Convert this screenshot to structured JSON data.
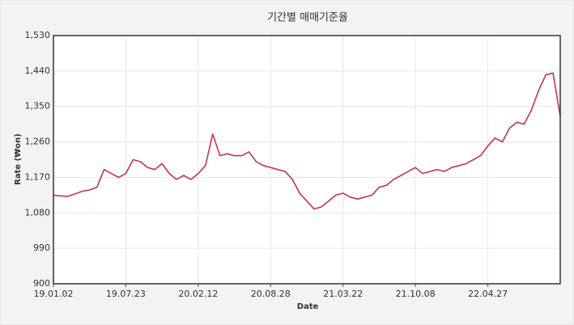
{
  "chart_data": {
    "type": "line",
    "title": "기간별 매매기준율",
    "x_label": "Date",
    "y_label": "Rate (₩on)",
    "x": [
      "19.01.02",
      "19.01.22",
      "19.02.13",
      "19.03.06",
      "19.03.26",
      "19.04.15",
      "19.05.07",
      "19.05.27",
      "19.06.17",
      "19.07.05",
      "19.07.23",
      "19.08.12",
      "19.08.30",
      "19.09.23",
      "19.10.14",
      "19.11.01",
      "19.11.21",
      "19.12.11",
      "20.01.02",
      "20.01.22",
      "20.02.12",
      "20.03.04",
      "20.03.19",
      "20.04.08",
      "20.04.28",
      "20.05.19",
      "20.06.08",
      "20.06.26",
      "20.07.16",
      "20.08.05",
      "20.08.28",
      "20.09.17",
      "20.10.08",
      "20.10.28",
      "20.11.17",
      "20.12.07",
      "20.12.28",
      "21.01.18",
      "21.02.05",
      "21.03.02",
      "21.03.22",
      "21.04.12",
      "21.04.30",
      "21.05.21",
      "21.06.10",
      "21.06.30",
      "21.07.20",
      "21.08.09",
      "21.08.27",
      "21.09.16",
      "21.10.08",
      "21.10.28",
      "21.11.17",
      "21.12.07",
      "21.12.27",
      "22.01.17",
      "22.02.08",
      "22.02.28",
      "22.03.21",
      "22.04.08",
      "22.04.27",
      "22.05.17",
      "22.06.07",
      "22.06.27",
      "22.07.15",
      "22.08.04",
      "22.08.25",
      "22.09.16",
      "22.10.07",
      "22.10.27",
      "22.11.11"
    ],
    "series": [
      {
        "name": "Rate",
        "color": "#c0384b",
        "values": [
          1125,
          1123,
          1122,
          1128,
          1135,
          1138,
          1145,
          1190,
          1180,
          1170,
          1180,
          1215,
          1210,
          1195,
          1190,
          1205,
          1180,
          1165,
          1175,
          1165,
          1180,
          1200,
          1280,
          1225,
          1230,
          1225,
          1225,
          1235,
          1210,
          1200,
          1195,
          1190,
          1185,
          1165,
          1130,
          1110,
          1090,
          1095,
          1110,
          1125,
          1130,
          1120,
          1115,
          1120,
          1125,
          1145,
          1150,
          1165,
          1175,
          1185,
          1195,
          1180,
          1185,
          1190,
          1185,
          1195,
          1200,
          1205,
          1215,
          1225,
          1250,
          1270,
          1260,
          1295,
          1310,
          1305,
          1340,
          1390,
          1430,
          1435,
          1325
        ]
      }
    ],
    "xticks": [
      "19.01.02",
      "19.07.23",
      "20.02.12",
      "20.08.28",
      "21.03.22",
      "21.10.08",
      "22.04.27"
    ],
    "ylim": [
      900,
      1530
    ],
    "yticks": [
      {
        "value": 900,
        "label": "900"
      },
      {
        "value": 990,
        "label": "990"
      },
      {
        "value": 1080,
        "label": "1,080"
      },
      {
        "value": 1170,
        "label": "1,170"
      },
      {
        "value": 1260,
        "label": "1,260"
      },
      {
        "value": 1350,
        "label": "1,350"
      },
      {
        "value": 1440,
        "label": "1,440"
      },
      {
        "value": 1530,
        "label": "1,530"
      }
    ],
    "grid": true
  }
}
